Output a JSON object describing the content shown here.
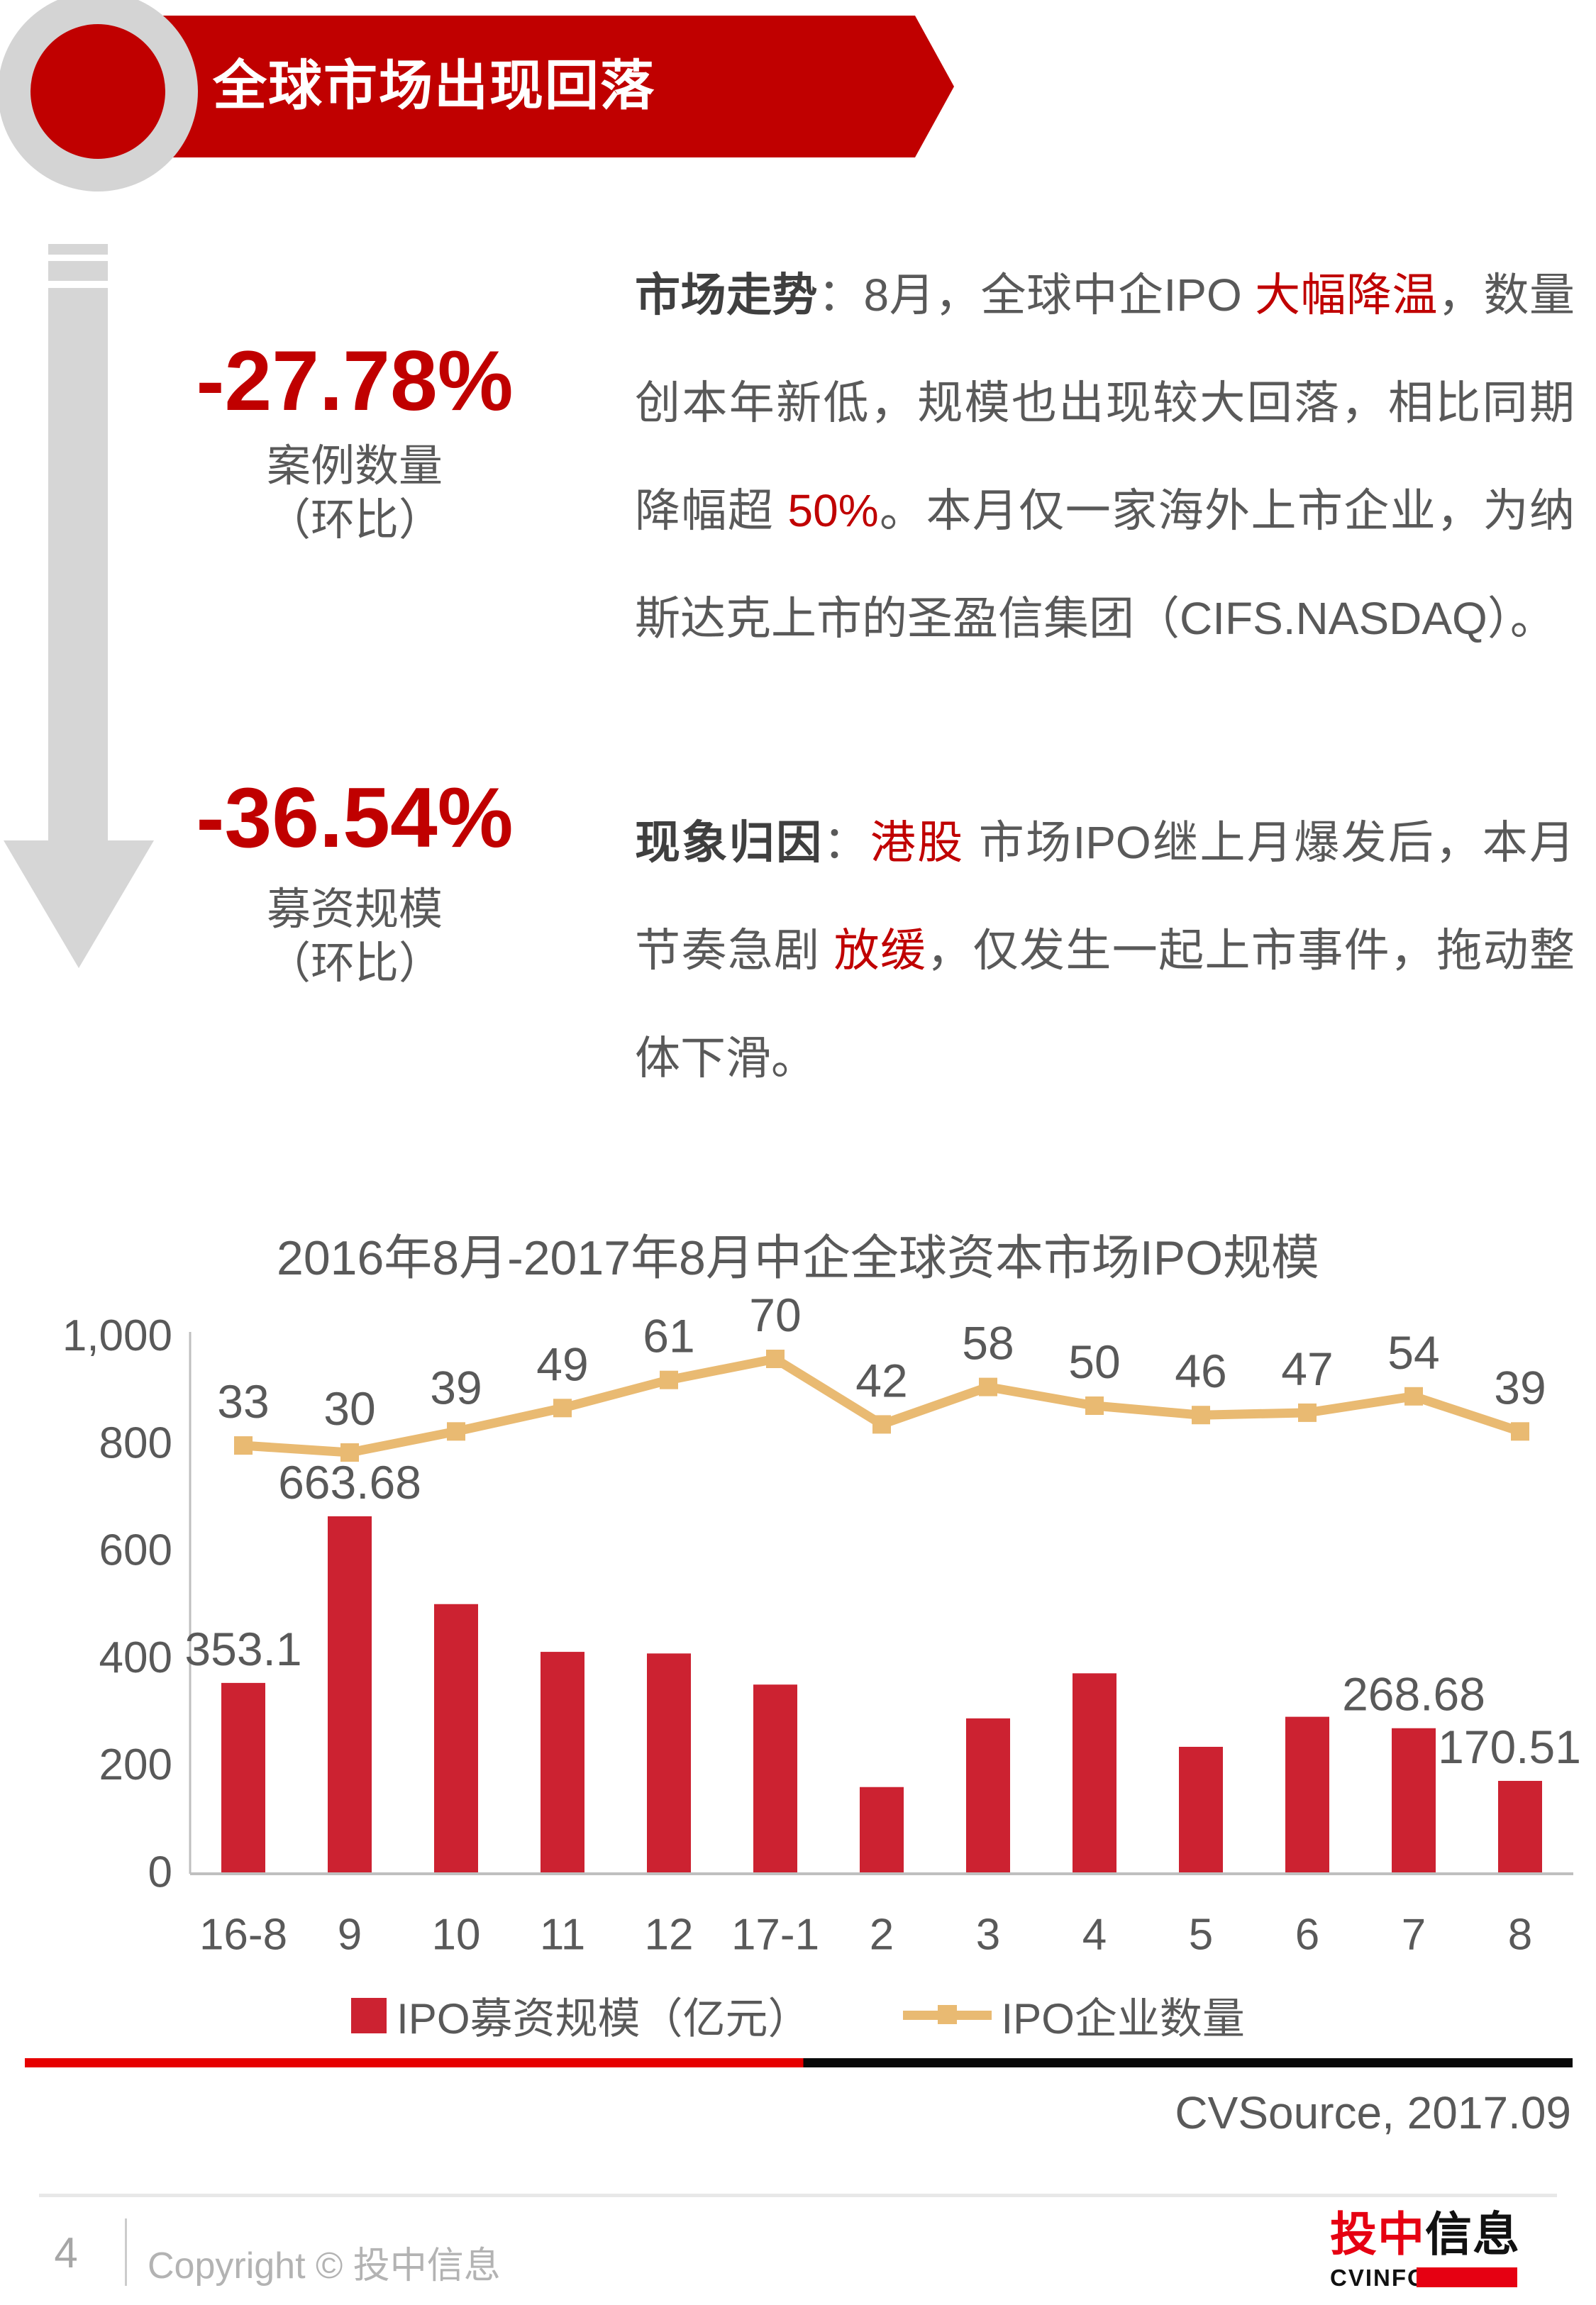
{
  "header": {
    "title": "全球市场出现回落"
  },
  "stats": [
    {
      "value": "-27.78%",
      "label_line1": "案例数量",
      "label_line2": "（环比）"
    },
    {
      "value": "-36.54%",
      "label_line1": "募资规模",
      "label_line2": "（环比）"
    }
  ],
  "paragraphs": [
    {
      "label": "市场走势",
      "segments": [
        {
          "text": "：8月，全球中企IPO ",
          "color": "dark"
        },
        {
          "text": "大幅降温",
          "color": "red"
        },
        {
          "text": "，数量创本年新低，规模也出现较大回落，相比同期降幅超 ",
          "color": "dark"
        },
        {
          "text": "50%",
          "color": "red"
        },
        {
          "text": "。本月仅一家海外上市企业，为纳斯达克上市的圣盈信集团（CIFS.NASDAQ）。",
          "color": "dark"
        }
      ]
    },
    {
      "label": "现象归因",
      "segments": [
        {
          "text": "：",
          "color": "dark"
        },
        {
          "text": "港股",
          "color": "red"
        },
        {
          "text": " 市场IPO继上月爆发后，本月节奏急剧 ",
          "color": "dark"
        },
        {
          "text": "放缓",
          "color": "red"
        },
        {
          "text": "，仅发生一起上市事件，拖动整体下滑。",
          "color": "dark"
        }
      ]
    }
  ],
  "chart_data": {
    "type": "bar",
    "title": "2016年8月-2017年8月中企全球资本市场IPO规模",
    "categories": [
      "16-8",
      "9",
      "10",
      "11",
      "12",
      "17-1",
      "2",
      "3",
      "4",
      "5",
      "6",
      "7",
      "8"
    ],
    "series": [
      {
        "name": "IPO募资规模（亿元）",
        "type": "bar",
        "color": "#cc2231",
        "values": [
          353.1,
          663.68,
          500,
          411,
          408,
          350,
          159,
          287,
          371,
          234,
          290,
          268.68,
          170.51
        ],
        "data_labels": [
          "353.1",
          "663.68",
          null,
          null,
          null,
          null,
          null,
          null,
          null,
          null,
          null,
          "268.68",
          "170.51"
        ]
      },
      {
        "name": "IPO企业数量",
        "type": "line",
        "color": "#e9ba72",
        "values": [
          33,
          30,
          39,
          49,
          61,
          70,
          42,
          58,
          50,
          46,
          47,
          54,
          39
        ],
        "data_labels": [
          "33",
          "30",
          "39",
          "49",
          "61",
          "70",
          "42",
          "58",
          "50",
          "46",
          "47",
          "54",
          "39"
        ]
      }
    ],
    "y_axis": {
      "min": 0,
      "max": 1000,
      "ticks": [
        0,
        200,
        400,
        600,
        800,
        1000
      ],
      "tick_labels": [
        "0",
        "200",
        "400",
        "600",
        "800",
        "1,000"
      ]
    },
    "grid": false,
    "legend_position": "bottom"
  },
  "source": "CVSource, 2017.09",
  "footer": {
    "page_number": "4",
    "copyright": "Copyright © 投中信息",
    "logo": {
      "red": "投中",
      "black": "信息",
      "sub": "CVINFO"
    }
  },
  "colors": {
    "accent_red": "#c00000",
    "bar_red": "#cc2231",
    "line_tan": "#e9ba72",
    "text_gray": "#595959",
    "light_gray": "#d6d6d6",
    "logo_red": "#e60012"
  }
}
